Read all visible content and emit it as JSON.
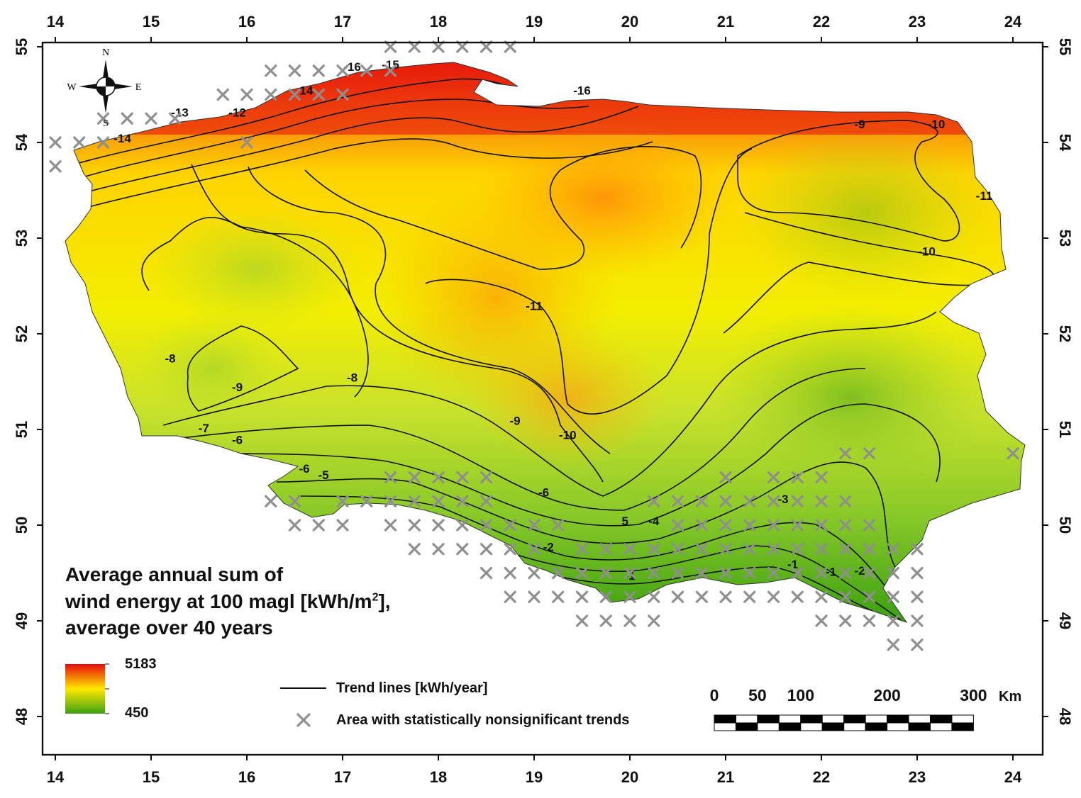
{
  "map": {
    "lon_range": [
      14,
      24
    ],
    "lat_range": [
      48,
      55
    ],
    "x_ticks": [
      "14",
      "15",
      "16",
      "17",
      "18",
      "19",
      "20",
      "21",
      "22",
      "23",
      "24"
    ],
    "y_ticks": [
      "48",
      "49",
      "50",
      "51",
      "52",
      "53",
      "54",
      "55"
    ],
    "gradient_colors": [
      "#e60b0b",
      "#ffe800",
      "#3ea012"
    ],
    "compass": {
      "n": "N",
      "s": "S",
      "e": "E",
      "w": "W"
    },
    "contour_labels": [
      {
        "text": "-16",
        "lon": 17.1,
        "lat": 54.75
      },
      {
        "text": "-15",
        "lon": 17.5,
        "lat": 54.77
      },
      {
        "text": "-14",
        "lon": 16.6,
        "lat": 54.5
      },
      {
        "text": "-13",
        "lon": 15.3,
        "lat": 54.27
      },
      {
        "text": "-12",
        "lon": 15.9,
        "lat": 54.27
      },
      {
        "text": "-14",
        "lon": 14.7,
        "lat": 54.0
      },
      {
        "text": "-16",
        "lon": 19.5,
        "lat": 54.5
      },
      {
        "text": "-9",
        "lon": 22.4,
        "lat": 54.15
      },
      {
        "text": "-10",
        "lon": 23.2,
        "lat": 54.15
      },
      {
        "text": "-11",
        "lon": 23.7,
        "lat": 53.4
      },
      {
        "text": "-10",
        "lon": 23.1,
        "lat": 52.82
      },
      {
        "text": "-11",
        "lon": 19.0,
        "lat": 52.25
      },
      {
        "text": "-8",
        "lon": 15.2,
        "lat": 51.7
      },
      {
        "text": "-9",
        "lon": 15.9,
        "lat": 51.4
      },
      {
        "text": "-8",
        "lon": 17.1,
        "lat": 51.5
      },
      {
        "text": "-9",
        "lon": 18.8,
        "lat": 51.05
      },
      {
        "text": "-10",
        "lon": 19.35,
        "lat": 50.9
      },
      {
        "text": "-7",
        "lon": 15.55,
        "lat": 50.97
      },
      {
        "text": "-6",
        "lon": 15.9,
        "lat": 50.85
      },
      {
        "text": "-6",
        "lon": 16.6,
        "lat": 50.55
      },
      {
        "text": "-5",
        "lon": 16.8,
        "lat": 50.48
      },
      {
        "text": "-6",
        "lon": 19.1,
        "lat": 50.3
      },
      {
        "text": "5",
        "lon": 19.95,
        "lat": 50.0
      },
      {
        "text": "-4",
        "lon": 20.25,
        "lat": 50.0
      },
      {
        "text": "-3",
        "lon": 21.6,
        "lat": 50.23
      },
      {
        "text": "-2",
        "lon": 19.15,
        "lat": 49.73
      },
      {
        "text": "-1",
        "lon": 20.0,
        "lat": 49.43
      },
      {
        "text": "-1",
        "lon": 21.7,
        "lat": 49.55
      },
      {
        "text": "-1",
        "lon": 22.1,
        "lat": 49.47
      },
      {
        "text": "-2",
        "lon": 22.4,
        "lat": 49.48
      }
    ],
    "nonsignificant_points": [
      [
        17.5,
        55
      ],
      [
        17.75,
        55
      ],
      [
        18,
        55
      ],
      [
        18.25,
        55
      ],
      [
        18.5,
        55
      ],
      [
        18.75,
        55
      ],
      [
        16.25,
        54.75
      ],
      [
        16.5,
        54.75
      ],
      [
        16.75,
        54.75
      ],
      [
        17,
        54.75
      ],
      [
        17.25,
        54.75
      ],
      [
        17.5,
        54.75
      ],
      [
        15.75,
        54.5
      ],
      [
        16,
        54.5
      ],
      [
        16.25,
        54.5
      ],
      [
        16.5,
        54.5
      ],
      [
        16.75,
        54.5
      ],
      [
        17,
        54.5
      ],
      [
        14.5,
        54.25
      ],
      [
        14.75,
        54.25
      ],
      [
        15,
        54.25
      ],
      [
        15.25,
        54.25
      ],
      [
        14,
        54
      ],
      [
        14.25,
        54
      ],
      [
        14.5,
        54
      ],
      [
        16,
        54
      ],
      [
        14,
        53.75
      ],
      [
        22.25,
        50.75
      ],
      [
        22.5,
        50.75
      ],
      [
        24,
        50.75
      ],
      [
        17.5,
        50.5
      ],
      [
        17.75,
        50.5
      ],
      [
        18,
        50.5
      ],
      [
        18.25,
        50.5
      ],
      [
        18.5,
        50.5
      ],
      [
        21,
        50.5
      ],
      [
        21.5,
        50.5
      ],
      [
        21.75,
        50.5
      ],
      [
        22,
        50.5
      ],
      [
        16.25,
        50.25
      ],
      [
        16.5,
        50.25
      ],
      [
        17,
        50.25
      ],
      [
        17.25,
        50.25
      ],
      [
        17.5,
        50.25
      ],
      [
        17.75,
        50.25
      ],
      [
        18,
        50.25
      ],
      [
        18.25,
        50.25
      ],
      [
        18.5,
        50.25
      ],
      [
        20.25,
        50.25
      ],
      [
        20.5,
        50.25
      ],
      [
        20.75,
        50.25
      ],
      [
        21,
        50.25
      ],
      [
        21.25,
        50.25
      ],
      [
        21.5,
        50.25
      ],
      [
        21.75,
        50.25
      ],
      [
        22,
        50.25
      ],
      [
        22.25,
        50.25
      ],
      [
        16.5,
        50
      ],
      [
        16.75,
        50
      ],
      [
        17,
        50
      ],
      [
        17.5,
        50
      ],
      [
        17.75,
        50
      ],
      [
        18,
        50
      ],
      [
        18.25,
        50
      ],
      [
        18.5,
        50
      ],
      [
        18.75,
        50
      ],
      [
        19,
        50
      ],
      [
        19.25,
        50
      ],
      [
        20.5,
        50
      ],
      [
        20.75,
        50
      ],
      [
        21,
        50
      ],
      [
        21.25,
        50
      ],
      [
        21.5,
        50
      ],
      [
        21.75,
        50
      ],
      [
        22,
        50
      ],
      [
        22.25,
        50
      ],
      [
        22.5,
        50
      ],
      [
        17.75,
        49.75
      ],
      [
        18,
        49.75
      ],
      [
        18.25,
        49.75
      ],
      [
        18.5,
        49.75
      ],
      [
        18.75,
        49.75
      ],
      [
        19,
        49.75
      ],
      [
        19.5,
        49.75
      ],
      [
        19.75,
        49.75
      ],
      [
        20,
        49.75
      ],
      [
        20.25,
        49.75
      ],
      [
        20.5,
        49.75
      ],
      [
        20.75,
        49.75
      ],
      [
        21,
        49.75
      ],
      [
        21.25,
        49.75
      ],
      [
        21.5,
        49.75
      ],
      [
        21.75,
        49.75
      ],
      [
        22,
        49.75
      ],
      [
        22.25,
        49.75
      ],
      [
        22.5,
        49.75
      ],
      [
        22.75,
        49.75
      ],
      [
        23,
        49.75
      ],
      [
        18.5,
        49.5
      ],
      [
        18.75,
        49.5
      ],
      [
        19,
        49.5
      ],
      [
        19.25,
        49.5
      ],
      [
        19.5,
        49.5
      ],
      [
        19.75,
        49.5
      ],
      [
        20,
        49.5
      ],
      [
        20.25,
        49.5
      ],
      [
        20.5,
        49.5
      ],
      [
        20.75,
        49.5
      ],
      [
        21,
        49.5
      ],
      [
        21.25,
        49.5
      ],
      [
        21.5,
        49.5
      ],
      [
        21.75,
        49.5
      ],
      [
        22,
        49.5
      ],
      [
        22.25,
        49.5
      ],
      [
        22.5,
        49.5
      ],
      [
        22.75,
        49.5
      ],
      [
        23,
        49.5
      ],
      [
        18.75,
        49.25
      ],
      [
        19,
        49.25
      ],
      [
        19.25,
        49.25
      ],
      [
        19.5,
        49.25
      ],
      [
        19.75,
        49.25
      ],
      [
        20,
        49.25
      ],
      [
        20.25,
        49.25
      ],
      [
        20.5,
        49.25
      ],
      [
        20.75,
        49.25
      ],
      [
        21,
        49.25
      ],
      [
        21.25,
        49.25
      ],
      [
        21.5,
        49.25
      ],
      [
        21.75,
        49.25
      ],
      [
        22,
        49.25
      ],
      [
        22.25,
        49.25
      ],
      [
        22.5,
        49.25
      ],
      [
        22.75,
        49.25
      ],
      [
        23,
        49.25
      ],
      [
        19.5,
        49
      ],
      [
        19.75,
        49
      ],
      [
        20,
        49
      ],
      [
        20.25,
        49
      ],
      [
        22,
        49
      ],
      [
        22.25,
        49
      ],
      [
        22.5,
        49
      ],
      [
        22.75,
        49
      ],
      [
        23,
        49
      ],
      [
        22.75,
        48.75
      ],
      [
        23,
        48.75
      ]
    ]
  },
  "title_lines": [
    "Average annual sum of",
    "wind energy at 100 magl [kWh/m",
    "2",
    "],",
    "average over 40 years"
  ],
  "legend": {
    "max_label": "5183",
    "min_label": "450",
    "trend_label": "Trend lines [kWh/year]",
    "nonsig_label": "Area with statistically nonsignificant trends"
  },
  "scale_bar": {
    "labels": [
      "0",
      "50",
      "100",
      "200",
      "300"
    ],
    "km_values": [
      0,
      50,
      100,
      200,
      300
    ],
    "unit": "Km"
  }
}
